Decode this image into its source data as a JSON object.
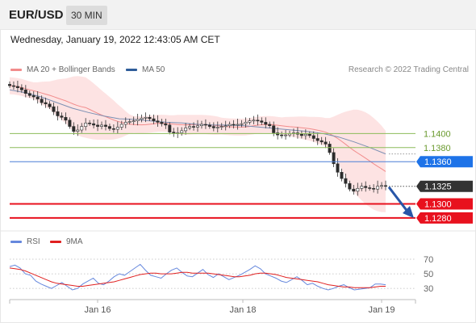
{
  "header": {
    "symbol": "EUR/USD",
    "interval": "30 MIN"
  },
  "datetime": "Wednesday, January 19, 2022 12:43:05 AM CET",
  "credit": "Research © 2022 Trading Central",
  "colors": {
    "price_label_blue": "#1e73e8",
    "price_label_red": "#e8111e",
    "price_label_current": "#333333",
    "support_red": "#e8111e",
    "pivot_blue": "#4a7fd6",
    "resistance_green": "#8cbc5a",
    "bollinger_fill": "#fcdada",
    "ma20": "#f28c8c",
    "ma50": "#7b8fb3",
    "rsi": "#6688dd",
    "rsi_ma": "#e02020",
    "arrow": "#2856a8"
  },
  "chart_data": [
    {
      "type": "candlestick",
      "legend": [
        {
          "name": "MA 20 + Bollinger Bands",
          "color": "#f28c8c"
        },
        {
          "name": "MA 50",
          "color": "#2f5d9a"
        }
      ],
      "x_ticks": [
        "Jan 16",
        "Jan 18",
        "Jan 19"
      ],
      "ylim": [
        1.1265,
        1.1475
      ],
      "levels": [
        {
          "value": 1.14,
          "label": "1.1400",
          "kind": "resistance"
        },
        {
          "value": 1.138,
          "label": "1.1380",
          "kind": "resistance"
        },
        {
          "value": 1.136,
          "label": "1.1360",
          "kind": "pivot"
        },
        {
          "value": 1.13,
          "label": "1.1300",
          "kind": "support"
        },
        {
          "value": 1.128,
          "label": "1.1280",
          "kind": "support"
        }
      ],
      "current": {
        "value": 1.1325,
        "label": "1.1325"
      },
      "close_series": [
        1.1468,
        1.1467,
        1.1465,
        1.1462,
        1.1457,
        1.1454,
        1.1452,
        1.1449,
        1.1444,
        1.1442,
        1.1438,
        1.1431,
        1.1425,
        1.1423,
        1.1419,
        1.141,
        1.1403,
        1.1405,
        1.141,
        1.1415,
        1.1414,
        1.1412,
        1.141,
        1.1412,
        1.141,
        1.1407,
        1.1406,
        1.1409,
        1.1413,
        1.1416,
        1.1417,
        1.1418,
        1.142,
        1.1422,
        1.1423,
        1.1421,
        1.1418,
        1.1416,
        1.1414,
        1.1412,
        1.1402,
        1.14,
        1.1401,
        1.1404,
        1.1408,
        1.141,
        1.1409,
        1.1411,
        1.1413,
        1.1412,
        1.141,
        1.1408,
        1.1409,
        1.141,
        1.1411,
        1.1413,
        1.1412,
        1.1413,
        1.1414,
        1.1416,
        1.1418,
        1.1419,
        1.1418,
        1.1416,
        1.1413,
        1.1411,
        1.1401,
        1.1398,
        1.1397,
        1.1398,
        1.14,
        1.1401,
        1.1399,
        1.1397,
        1.1399,
        1.1397,
        1.1393,
        1.139,
        1.1388,
        1.1385,
        1.1373,
        1.1357,
        1.1345,
        1.1336,
        1.1329,
        1.1321,
        1.1318,
        1.1322,
        1.1325,
        1.1323,
        1.1322,
        1.1321,
        1.1325,
        1.1326,
        1.1325
      ],
      "ma50_series": [
        1.1462,
        1.1458,
        1.1452,
        1.1444,
        1.1436,
        1.143,
        1.1425,
        1.1421,
        1.142,
        1.1418,
        1.1416,
        1.1415,
        1.1413,
        1.1412,
        1.1412,
        1.1411,
        1.1409,
        1.1407,
        1.1405,
        1.1403,
        1.14,
        1.1395,
        1.1388,
        1.138,
        1.1371
      ]
    },
    {
      "type": "line",
      "legend": [
        {
          "name": "RSI",
          "color": "#6688dd"
        },
        {
          "name": "9MA",
          "color": "#e02020"
        }
      ],
      "ylim": [
        18,
        80
      ],
      "y_ticks": [
        70,
        50,
        30
      ],
      "rsi": [
        60,
        62,
        58,
        50,
        48,
        40,
        36,
        33,
        30,
        34,
        38,
        33,
        28,
        30,
        36,
        40,
        44,
        37,
        35,
        40,
        46,
        50,
        48,
        53,
        58,
        63,
        55,
        48,
        46,
        44,
        50,
        55,
        58,
        52,
        47,
        46,
        51,
        56,
        49,
        45,
        50,
        46,
        42,
        45,
        48,
        52,
        56,
        61,
        57,
        50,
        47,
        44,
        40,
        38,
        42,
        46,
        41,
        35,
        37,
        33,
        30,
        28,
        30,
        33,
        35,
        31,
        28,
        29,
        30,
        31,
        36,
        36,
        35
      ],
      "rsi_9ma": [
        58,
        57,
        56,
        54,
        51,
        48,
        45,
        42,
        39,
        37,
        36,
        35,
        34,
        33,
        33,
        34,
        35,
        36,
        37,
        38,
        39,
        41,
        43,
        45,
        47,
        49,
        50,
        51,
        51,
        50,
        50,
        50,
        51,
        52,
        52,
        51,
        51,
        51,
        51,
        50,
        49,
        48,
        47,
        46,
        46,
        47,
        48,
        50,
        51,
        51,
        50,
        49,
        47,
        45,
        44,
        43,
        42,
        41,
        40,
        39,
        37,
        35,
        34,
        33,
        32,
        32,
        31,
        31,
        31,
        31,
        32,
        33,
        33
      ]
    }
  ]
}
